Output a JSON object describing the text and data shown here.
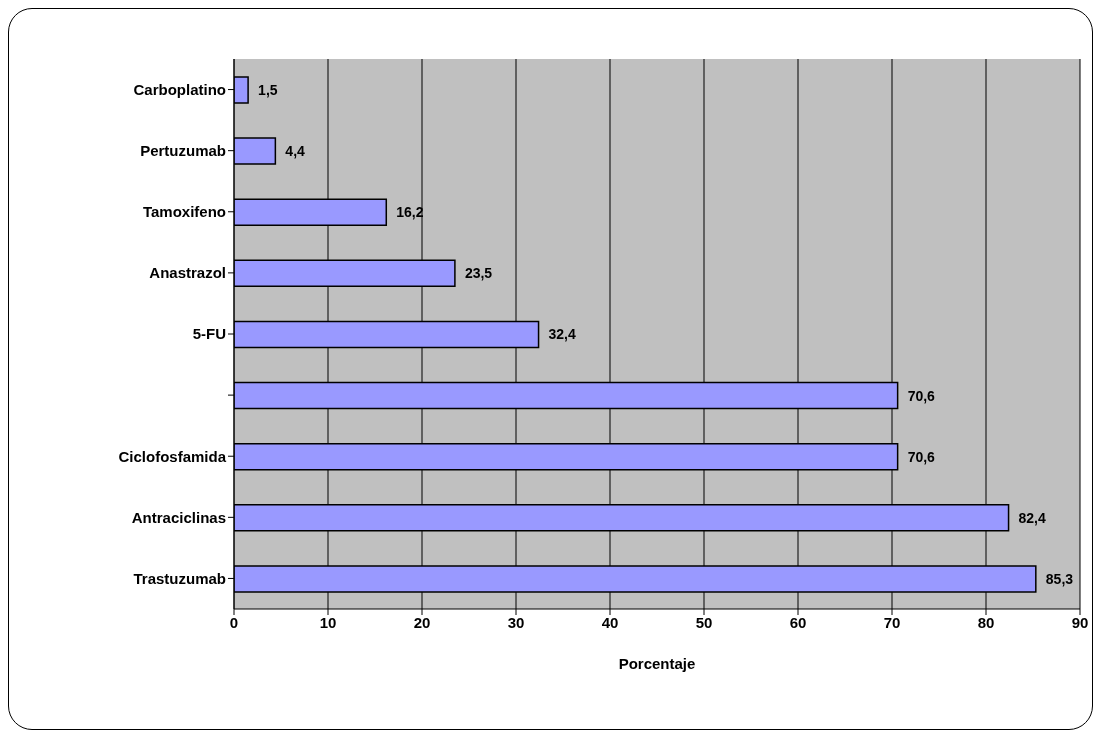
{
  "chart_data": {
    "type": "bar",
    "orientation": "horizontal",
    "categories": [
      "Carboplatino",
      "Pertuzumab",
      "Tamoxifeno",
      "Anastrazol",
      "5-FU",
      null,
      "Ciclofosfamida",
      "Antraciclinas",
      "Trastuzumab"
    ],
    "values": [
      1.5,
      4.4,
      16.2,
      23.5,
      32.4,
      70.6,
      70.6,
      82.4,
      85.3
    ],
    "value_labels": [
      "1,5",
      "4,4",
      "16,2",
      "23,5",
      "32,4",
      "70,6",
      "70,6",
      "82,4",
      "85,3"
    ],
    "color": "#9999ff",
    "xlabel": "Porcentaje",
    "xlim": [
      0,
      90
    ],
    "xticks": [
      0,
      10,
      20,
      30,
      40,
      50,
      60,
      70,
      80,
      90
    ],
    "grid": "x",
    "legend": false
  }
}
